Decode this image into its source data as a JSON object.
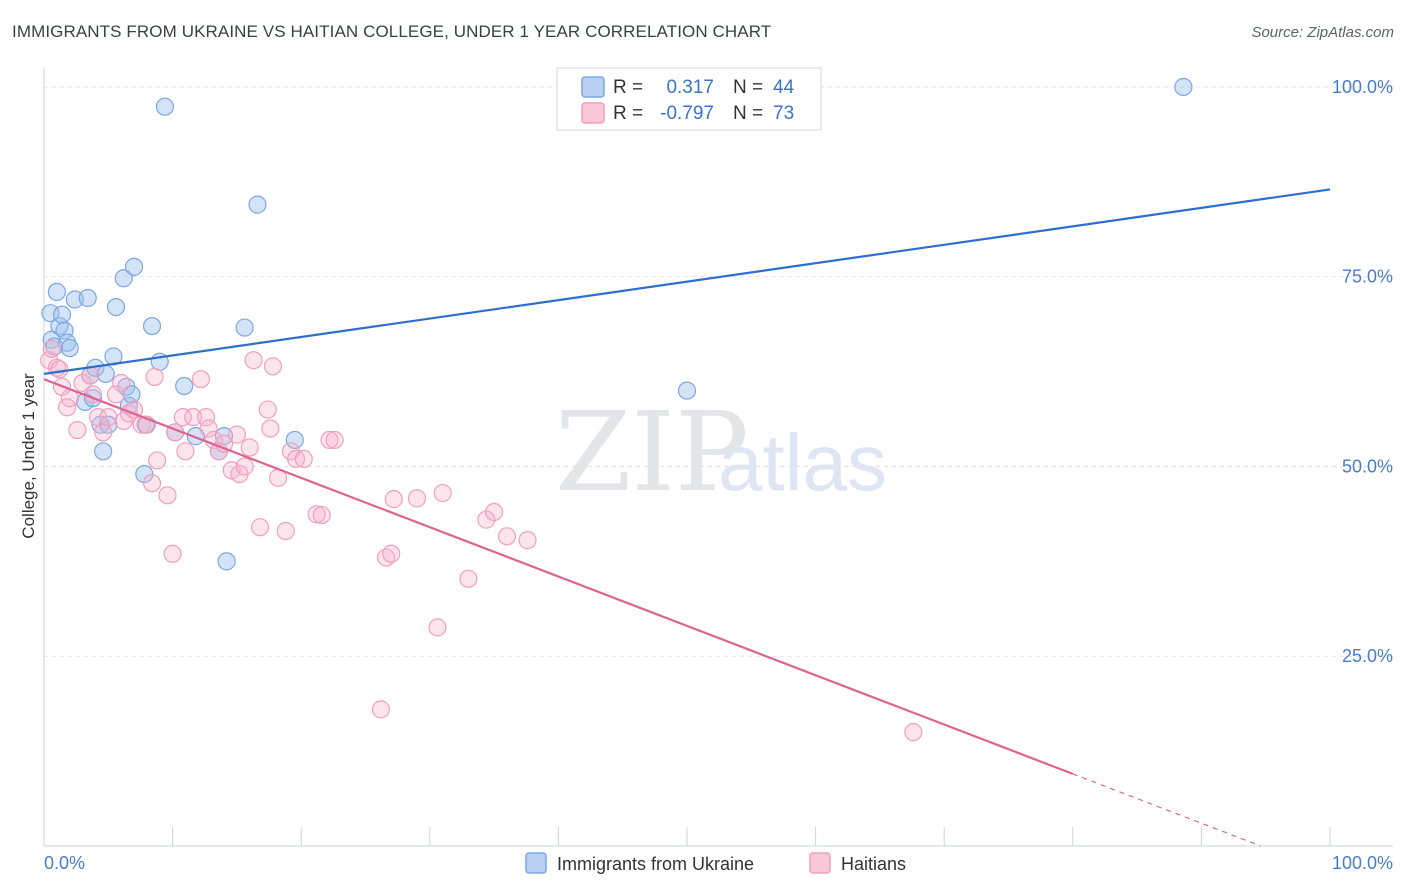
{
  "header": {
    "title": "IMMIGRANTS FROM UKRAINE VS HAITIAN COLLEGE, UNDER 1 YEAR CORRELATION CHART",
    "source": "Source: ZipAtlas.com"
  },
  "legend": {
    "ukraine": {
      "r_label": "R =",
      "r_value": "0.317",
      "n_label": "N =",
      "n_value": "44"
    },
    "haitians": {
      "r_label": "R =",
      "r_value": "-0.797",
      "n_label": "N =",
      "n_value": "73"
    }
  },
  "bottom_legend": {
    "ukraine": "Immigrants from Ukraine",
    "haitians": "Haitians"
  },
  "watermark": {
    "zip": "ZIP",
    "atlas": "atlas"
  },
  "chart_data": {
    "type": "scatter",
    "title": "IMMIGRANTS FROM UKRAINE VS HAITIAN COLLEGE, UNDER 1 YEAR CORRELATION CHART",
    "xlabel": "",
    "ylabel": "College, Under 1 year",
    "xlim": [
      0,
      100
    ],
    "ylim": [
      0,
      102.5
    ],
    "x_tick_labels": [
      "0.0%",
      "100.0%"
    ],
    "y_ticks": [
      25,
      50,
      75,
      100
    ],
    "y_tick_labels": [
      "25.0%",
      "50.0%",
      "75.0%",
      "100.0%"
    ],
    "colors": {
      "ukraine": "#7ba7e4",
      "ukraine_line": "#2f6fcc",
      "haitians": "#f0a0bc",
      "haitians_line": "#e0638f"
    },
    "series": [
      {
        "name": "Immigrants from Ukraine",
        "trend": {
          "x0": 0,
          "y0": 62.2,
          "x1": 100,
          "y1": 86.5
        },
        "points": [
          [
            0.5,
            70.2
          ],
          [
            0.6,
            66.7
          ],
          [
            0.8,
            65.8
          ],
          [
            1.0,
            73.0
          ],
          [
            1.2,
            68.5
          ],
          [
            1.4,
            70.0
          ],
          [
            1.6,
            67.9
          ],
          [
            1.8,
            66.3
          ],
          [
            2.0,
            65.6
          ],
          [
            2.4,
            72.0
          ],
          [
            3.4,
            72.2
          ],
          [
            3.2,
            58.5
          ],
          [
            3.6,
            62.0
          ],
          [
            3.8,
            59.0
          ],
          [
            4.0,
            63.0
          ],
          [
            4.4,
            55.5
          ],
          [
            4.6,
            52.0
          ],
          [
            4.8,
            62.2
          ],
          [
            5.0,
            55.5
          ],
          [
            5.4,
            64.5
          ],
          [
            5.6,
            71.0
          ],
          [
            6.2,
            74.8
          ],
          [
            6.4,
            60.5
          ],
          [
            6.6,
            58.0
          ],
          [
            6.8,
            59.5
          ],
          [
            7.0,
            76.3
          ],
          [
            7.8,
            49.0
          ],
          [
            7.9,
            55.5
          ],
          [
            8.4,
            68.5
          ],
          [
            9.0,
            63.8
          ],
          [
            9.4,
            97.4
          ],
          [
            10.2,
            54.5
          ],
          [
            10.9,
            60.6
          ],
          [
            11.8,
            54.0
          ],
          [
            13.6,
            52.0
          ],
          [
            14.0,
            54.0
          ],
          [
            14.2,
            37.5
          ],
          [
            15.6,
            68.3
          ],
          [
            16.6,
            84.5
          ],
          [
            19.5,
            53.5
          ],
          [
            50.0,
            60.0
          ],
          [
            88.6,
            100.0
          ]
        ]
      },
      {
        "name": "Haitians",
        "trend": {
          "x0": 0,
          "y0": 61.5,
          "x1": 80,
          "y1": 9.5,
          "dash_to_x": 100,
          "dash_to_y": -3.5
        },
        "points": [
          [
            0.4,
            64.0
          ],
          [
            0.6,
            65.5
          ],
          [
            1.0,
            63.0
          ],
          [
            1.2,
            62.8
          ],
          [
            1.4,
            60.5
          ],
          [
            1.8,
            57.8
          ],
          [
            2.0,
            59.0
          ],
          [
            2.6,
            54.8
          ],
          [
            3.0,
            61.0
          ],
          [
            3.6,
            62.0
          ],
          [
            3.8,
            59.5
          ],
          [
            4.2,
            56.5
          ],
          [
            4.6,
            54.5
          ],
          [
            5.0,
            56.5
          ],
          [
            5.6,
            59.5
          ],
          [
            6.0,
            61.0
          ],
          [
            6.2,
            56.0
          ],
          [
            6.6,
            57.0
          ],
          [
            7.0,
            57.5
          ],
          [
            7.6,
            55.5
          ],
          [
            8.0,
            55.5
          ],
          [
            8.4,
            47.8
          ],
          [
            8.6,
            61.8
          ],
          [
            8.8,
            50.8
          ],
          [
            9.6,
            46.2
          ],
          [
            10.0,
            38.5
          ],
          [
            10.2,
            54.5
          ],
          [
            10.8,
            56.5
          ],
          [
            11.0,
            52.0
          ],
          [
            11.6,
            56.5
          ],
          [
            12.2,
            61.5
          ],
          [
            12.6,
            56.5
          ],
          [
            12.8,
            55.0
          ],
          [
            13.2,
            53.5
          ],
          [
            13.6,
            52.0
          ],
          [
            14.0,
            53.0
          ],
          [
            14.6,
            49.5
          ],
          [
            15.0,
            54.2
          ],
          [
            15.2,
            49.0
          ],
          [
            15.6,
            50.0
          ],
          [
            16.0,
            52.5
          ],
          [
            16.3,
            64.0
          ],
          [
            16.8,
            42.0
          ],
          [
            17.4,
            57.5
          ],
          [
            17.6,
            55.0
          ],
          [
            17.8,
            63.2
          ],
          [
            18.2,
            48.5
          ],
          [
            18.8,
            41.5
          ],
          [
            19.2,
            52.0
          ],
          [
            19.6,
            51.0
          ],
          [
            20.2,
            51.0
          ],
          [
            21.2,
            43.7
          ],
          [
            21.6,
            43.6
          ],
          [
            22.2,
            53.5
          ],
          [
            22.6,
            53.5
          ],
          [
            26.2,
            18.0
          ],
          [
            26.6,
            38.0
          ],
          [
            27.0,
            38.5
          ],
          [
            27.2,
            45.7
          ],
          [
            29.0,
            45.8
          ],
          [
            30.6,
            28.8
          ],
          [
            31.0,
            46.5
          ],
          [
            33.0,
            35.2
          ],
          [
            34.4,
            43.0
          ],
          [
            35.0,
            44.0
          ],
          [
            36.0,
            40.8
          ],
          [
            37.6,
            40.3
          ],
          [
            67.6,
            15.0
          ]
        ]
      }
    ]
  }
}
